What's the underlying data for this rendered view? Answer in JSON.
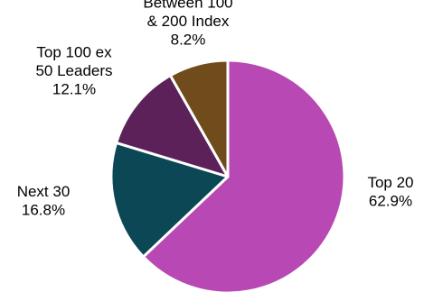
{
  "chart_data": {
    "type": "pie",
    "title": "",
    "slices": [
      {
        "label_lines": [
          "Top 20"
        ],
        "value": 62.9,
        "value_text": "62.9%",
        "color": "#B848B4"
      },
      {
        "label_lines": [
          "Next 30"
        ],
        "value": 16.8,
        "value_text": "16.8%",
        "color": "#0C4756"
      },
      {
        "label_lines": [
          "Top 100 ex",
          "50 Leaders"
        ],
        "value": 12.1,
        "value_text": "12.1%",
        "color": "#5C2158"
      },
      {
        "label_lines": [
          "Between 100",
          "& 200 Index"
        ],
        "value": 8.2,
        "value_text": "8.2%",
        "color": "#704B1B"
      }
    ]
  }
}
